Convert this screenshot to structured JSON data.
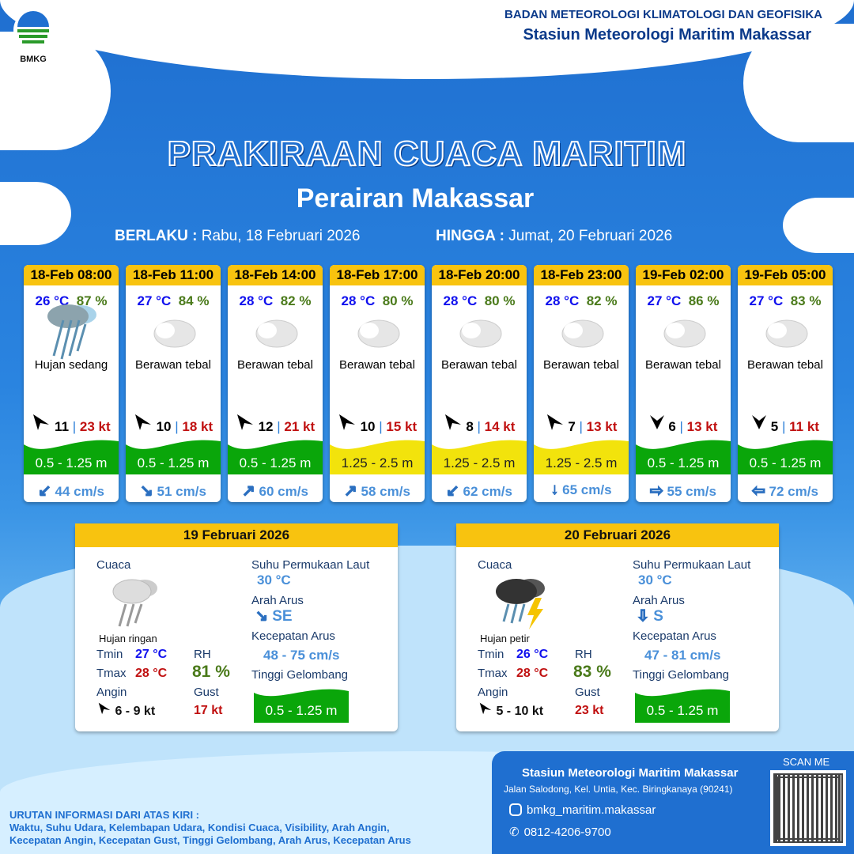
{
  "header": {
    "logo_text": "BMKG",
    "agency": "BADAN METEOROLOGI KLIMATOLOGI DAN GEOFISIKA",
    "station": "Stasiun Meteorologi Maritim Makassar"
  },
  "title": "PRAKIRAAN CUACA MARITIM",
  "subtitle": "Perairan Makassar",
  "validity": {
    "from_label": "BERLAKU :",
    "from": "Rabu, 18 Februari 2026",
    "to_label": "HINGGA :",
    "to": "Jumat, 20 Februari 2026"
  },
  "cards": [
    {
      "time": "18-Feb 08:00",
      "temp": "26 °C",
      "rh": "87 %",
      "icon": "rain-icon",
      "cond": "Hujan sedang",
      "wind_dir": "wind-arrow-northwest",
      "wind": "11",
      "gust": "23 kt",
      "wave": "0.5 - 1.25 m",
      "wave_color": "#0aa60a",
      "cur_arrow": "↙",
      "current": "44 cm/s"
    },
    {
      "time": "18-Feb 11:00",
      "temp": "27 °C",
      "rh": "84 %",
      "icon": "cloud-icon",
      "cond": "Berawan tebal",
      "wind_dir": "wind-arrow-northwest",
      "wind": "10",
      "gust": "18 kt",
      "wave": "0.5 - 1.25 m",
      "wave_color": "#0aa60a",
      "cur_arrow": "↘",
      "current": "51 cm/s"
    },
    {
      "time": "18-Feb 14:00",
      "temp": "28 °C",
      "rh": "82 %",
      "icon": "cloud-icon",
      "cond": "Berawan tebal",
      "wind_dir": "wind-arrow-northwest",
      "wind": "12",
      "gust": "21 kt",
      "wave": "0.5 - 1.25 m",
      "wave_color": "#0aa60a",
      "cur_arrow": "↗",
      "current": "60 cm/s"
    },
    {
      "time": "18-Feb 17:00",
      "temp": "28 °C",
      "rh": "80 %",
      "icon": "cloud-icon",
      "cond": "Berawan tebal",
      "wind_dir": "wind-arrow-northwest",
      "wind": "10",
      "gust": "15 kt",
      "wave": "1.25 - 2.5 m",
      "wave_color": "#f2e30c",
      "cur_arrow": "↗",
      "current": "58 cm/s"
    },
    {
      "time": "18-Feb 20:00",
      "temp": "28 °C",
      "rh": "80 %",
      "icon": "cloud-icon",
      "cond": "Berawan tebal",
      "wind_dir": "wind-arrow-northwest",
      "wind": "8",
      "gust": "14 kt",
      "wave": "1.25 - 2.5 m",
      "wave_color": "#f2e30c",
      "cur_arrow": "↙",
      "current": "62 cm/s"
    },
    {
      "time": "18-Feb 23:00",
      "temp": "28 °C",
      "rh": "82 %",
      "icon": "cloud-icon",
      "cond": "Berawan tebal",
      "wind_dir": "wind-arrow-northwest",
      "wind": "7",
      "gust": "13 kt",
      "wave": "1.25 - 2.5 m",
      "wave_color": "#f2e30c",
      "cur_arrow": "↓",
      "current": "65 cm/s"
    },
    {
      "time": "19-Feb 02:00",
      "temp": "27 °C",
      "rh": "86 %",
      "icon": "cloud-icon",
      "cond": "Berawan tebal",
      "wind_dir": "wind-arrow-south",
      "wind": "6",
      "gust": "13 kt",
      "wave": "0.5 - 1.25 m",
      "wave_color": "#0aa60a",
      "cur_arrow": "⇨",
      "current": "55 cm/s"
    },
    {
      "time": "19-Feb 05:00",
      "temp": "27 °C",
      "rh": "83 %",
      "icon": "cloud-icon",
      "cond": "Berawan tebal",
      "wind_dir": "wind-arrow-south",
      "wind": "5",
      "gust": "11 kt",
      "wave": "0.5 - 1.25 m",
      "wave_color": "#0aa60a",
      "cur_arrow": "⇦",
      "current": "72 cm/s"
    }
  ],
  "daily": [
    {
      "date": "19 Februari 2026",
      "cuaca_label": "Cuaca",
      "cond": "Hujan ringan",
      "icon": "light-rain-icon",
      "tmin_label": "Tmin",
      "tmin": "27 °C",
      "tmax_label": "Tmax",
      "tmax": "28 °C",
      "rh_label": "RH",
      "rh": "81 %",
      "angin_label": "Angin",
      "angin": "6  - 9 kt",
      "gust_label": "Gust",
      "gust": "17 kt",
      "sst_label": "Suhu Permukaan Laut",
      "sst": "30 °C",
      "arus_label": "Arah Arus",
      "arus_arrow": "↘",
      "arus": "SE",
      "kec_label": "Kecepatan Arus",
      "kec": "48  - 75 cm/s",
      "wave_label": "Tinggi Gelombang",
      "wave": "0.5 - 1.25 m"
    },
    {
      "date": "20 Februari 2026",
      "cuaca_label": "Cuaca",
      "cond": "Hujan petir",
      "icon": "thunderstorm-icon",
      "tmin_label": "Tmin",
      "tmin": "26 °C",
      "tmax_label": "Tmax",
      "tmax": "28 °C",
      "rh_label": "RH",
      "rh": "83 %",
      "angin_label": "Angin",
      "angin": "5  - 10 kt",
      "gust_label": "Gust",
      "gust": "23 kt",
      "sst_label": "Suhu Permukaan Laut",
      "sst": "30 °C",
      "arus_label": "Arah Arus",
      "arus_arrow": "⇩",
      "arus": "S",
      "kec_label": "Kecepatan Arus",
      "kec": "47  - 81 cm/s",
      "wave_label": "Tinggi Gelombang",
      "wave": "0.5 - 1.25 m"
    }
  ],
  "legend": {
    "title": "URUTAN INFORMASI DARI ATAS KIRI :",
    "line1": "Waktu, Suhu Udara, Kelembapan Udara, Kondisi Cuaca, Visibility, Arah Angin,",
    "line2": "Kecepatan Angin, Kecepatan Gust, Tinggi Gelombang, Arah Arus, Kecepatan Arus"
  },
  "footer": {
    "station": "Stasiun Meteorologi Maritim Makassar",
    "address": "Jalan Salodong, Kel. Untia, Kec. Biringkanaya (90241)",
    "instagram": "bmkg_maritim.makassar",
    "phone": "0812-4206-9700",
    "scan": "SCAN ME"
  }
}
